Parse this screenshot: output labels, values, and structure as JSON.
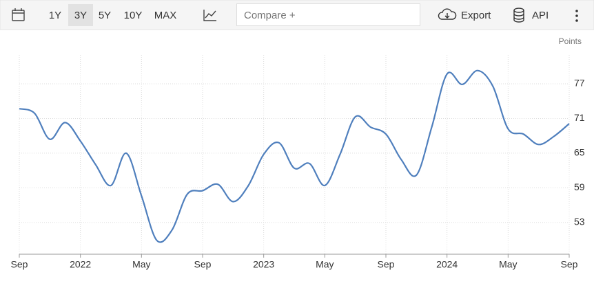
{
  "toolbar": {
    "ranges": [
      "1Y",
      "3Y",
      "5Y",
      "10Y",
      "MAX"
    ],
    "compare": "Compare +",
    "export": "Export",
    "api": "API"
  },
  "chart_data": {
    "type": "line",
    "y_label": "Points",
    "categories": [
      "Sep",
      null,
      null,
      null,
      "2022",
      null,
      null,
      null,
      "May",
      null,
      null,
      null,
      "Sep",
      null,
      null,
      null,
      "2023",
      null,
      null,
      null,
      "May",
      null,
      null,
      null,
      "Sep",
      null,
      null,
      null,
      "2024",
      null,
      null,
      null,
      "May",
      null,
      null,
      null,
      "Sep"
    ],
    "series": [
      {
        "color": "#4f7fbd",
        "values": [
          72.7,
          71.9,
          67.4,
          70.3,
          67.1,
          63.0,
          59.4,
          65.0,
          57.6,
          49.9,
          51.7,
          57.9,
          58.5,
          59.6,
          56.6,
          59.4,
          64.8,
          66.8,
          62.4,
          63.2,
          59.4,
          64.8,
          71.3,
          69.5,
          68.3,
          63.9,
          61.2,
          69.5,
          78.7,
          76.9,
          79.3,
          76.6,
          69.2,
          68.3,
          66.5,
          67.9,
          70.1
        ]
      }
    ],
    "ylim": [
      47.5,
      82
    ],
    "yticks": [
      53,
      59,
      65,
      71,
      77
    ],
    "grid": true
  }
}
